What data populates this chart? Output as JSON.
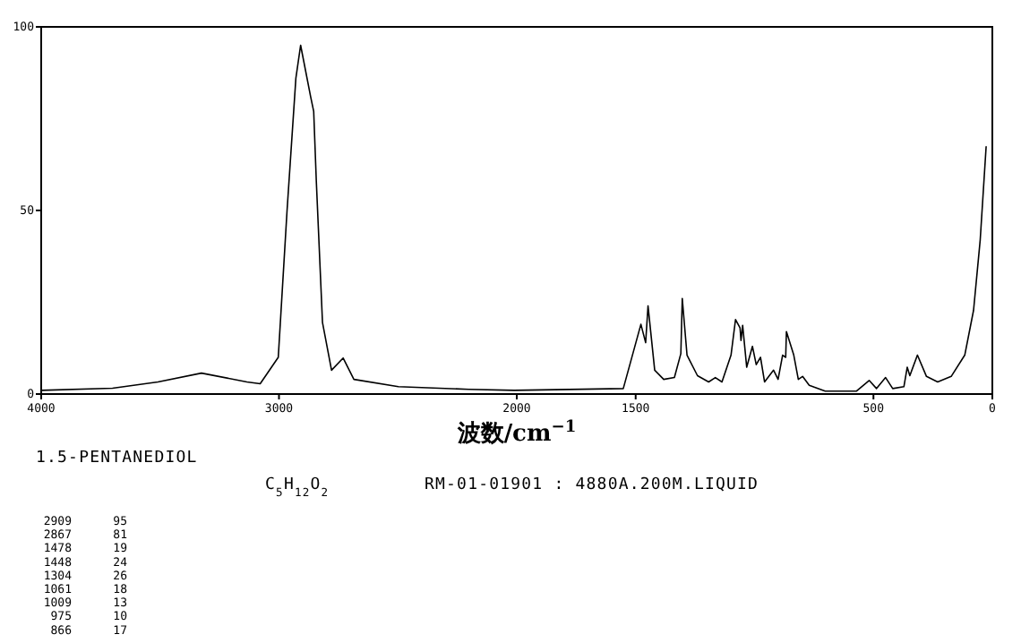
{
  "chart_data": {
    "type": "line",
    "xlabel": "波数/cm$^{−1}$",
    "xlim": [
      4000,
      0
    ],
    "xticks": [
      4000,
      3000,
      2000,
      1500,
      500,
      0
    ],
    "ylim": [
      0,
      100
    ],
    "yticks": [
      0,
      50,
      100
    ],
    "grid": false,
    "x": [
      4000,
      3700,
      3509,
      3326,
      3135,
      3079,
      3003,
      2966,
      2929,
      2909,
      2867,
      2854,
      2843,
      2817,
      2779,
      2730,
      2685,
      2498,
      2202,
      2011,
      1552,
      1478,
      1458,
      1448,
      1420,
      1382,
      1337,
      1310,
      1304,
      1284,
      1240,
      1193,
      1165,
      1137,
      1099,
      1080,
      1061,
      1057,
      1050,
      1033,
      1009,
      993,
      975,
      958,
      920,
      901,
      882,
      869,
      866,
      835,
      816,
      798,
      770,
      703,
      571,
      518,
      487,
      449,
      419,
      372,
      358,
      347,
      315,
      277,
      230,
      173,
      116,
      79,
      51,
      26
    ],
    "series": [
      {
        "color": "#000000",
        "values": [
          1,
          1.6,
          3.3,
          5.7,
          3.3,
          2.8,
          10,
          50,
          86,
          95,
          81,
          77,
          58,
          19.5,
          6.5,
          9.8,
          4,
          2,
          1.3,
          1,
          1.5,
          19,
          14,
          24,
          6.5,
          4,
          4.5,
          11,
          26,
          10.6,
          5,
          3.3,
          4.5,
          3.3,
          10.6,
          20.3,
          18,
          14.6,
          18.7,
          7.3,
          13,
          8,
          10,
          3.3,
          6.5,
          4,
          10.6,
          10,
          17,
          10.6,
          4,
          4.8,
          2.4,
          0.8,
          0.8,
          3.7,
          1.5,
          4.5,
          1.5,
          2,
          7.3,
          5,
          10.6,
          4.8,
          3.3,
          4.8,
          10.6,
          22.8,
          42,
          67.5
        ]
      }
    ],
    "annotations": [
      "1.5-PENTANEDIOL",
      "C$_{5}$H$_{12}$O$_{2}$",
      "RM-01-01901 : 4880A.200M.LIQUID",
      "2909 95",
      "2867 81",
      "1478 19",
      "1448 24",
      "1304 26",
      "1061 18",
      "1009 13",
      "975 10",
      "866 17"
    ]
  }
}
